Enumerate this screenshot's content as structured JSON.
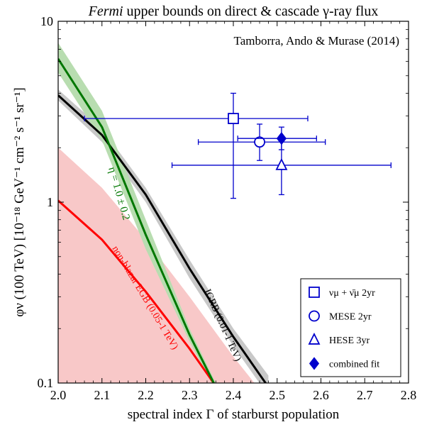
{
  "chart_data": {
    "type": "scatter",
    "title": "Fermi upper bounds on direct & cascade γ-ray flux",
    "title_italic_part": "Fermi",
    "title_rest": " upper bounds on direct & cascade γ-ray flux",
    "annotation": "Tamborra, Ando & Murase (2014)",
    "xlabel": "spectral index Γ of starburst population",
    "ylabel": "φν (100 TeV) [10⁻¹⁸ GeV⁻¹ cm⁻² s⁻¹ sr⁻¹]",
    "xlim": [
      2.0,
      2.8
    ],
    "ylim": [
      0.1,
      10
    ],
    "yscale": "log",
    "grid": false,
    "legend_position": "lower-right",
    "x_ticks": [
      "2.0",
      "2.1",
      "2.2",
      "2.3",
      "2.4",
      "2.5",
      "2.6",
      "2.7",
      "2.8"
    ],
    "y_ticks": [
      "0.1",
      "1",
      "10"
    ],
    "colors": {
      "data": "#0000cc",
      "egrb": "#ff0000",
      "egrb_band": "#f8c8c8",
      "igrb": "#000000",
      "igrb_band": "#c8c8c8",
      "eta": "#007700",
      "eta_band": "#b8ddb0"
    },
    "bands": [
      {
        "label": "IGRB (0.01-1 TeV)",
        "kind": "igrb",
        "x": [
          2.0,
          2.1,
          2.2,
          2.3,
          2.4,
          2.48
        ],
        "lower": [
          3.65,
          2.15,
          1.0,
          0.38,
          0.16,
          0.085
        ],
        "upper": [
          4.2,
          2.55,
          1.2,
          0.48,
          0.2,
          0.11
        ],
        "line": [
          3.9,
          2.35,
          1.1,
          0.43,
          0.18,
          0.095
        ]
      },
      {
        "label": "non-blazar EGB (0.05-1 TeV)",
        "kind": "egrb",
        "x": [
          2.0,
          2.1,
          2.2,
          2.3,
          2.4,
          2.46
        ],
        "lower": [
          0.0,
          0.0,
          0.0,
          0.0,
          0.0,
          0.0
        ],
        "upper": [
          2.0,
          1.2,
          0.62,
          0.3,
          0.14,
          0.092
        ],
        "line": [
          1.02,
          0.62,
          0.32,
          0.155,
          0.07,
          0.046
        ]
      },
      {
        "label": "η = 1.0 ± 0.2",
        "kind": "eta",
        "x": [
          2.0,
          2.1,
          2.2,
          2.3,
          2.36
        ],
        "lower": [
          5.2,
          2.2,
          0.55,
          0.17,
          0.09
        ],
        "upper": [
          7.6,
          3.2,
          0.8,
          0.2,
          0.1
        ],
        "line": [
          6.2,
          2.6,
          0.66,
          0.185,
          0.095
        ]
      }
    ],
    "band_labels": {
      "igrb": "IGRB (0.01-1 TeV)",
      "egrb": "non-blazar EGB (0.05-1 TeV)",
      "eta": "η = 1.0 ± 0.2"
    },
    "points": [
      {
        "name": "νμ + ν̄μ 2yr",
        "marker": "square",
        "filled": false,
        "x": 2.4,
        "y": 2.9,
        "xerr": [
          0.34,
          0.17
        ],
        "yerr": [
          1.85,
          1.1
        ]
      },
      {
        "name": "MESE 2yr",
        "marker": "circle",
        "filled": false,
        "x": 2.46,
        "y": 2.15,
        "xerr": [
          0.14,
          0.15
        ],
        "yerr": [
          0.45,
          0.55
        ]
      },
      {
        "name": "HESE 3yr",
        "marker": "triangle",
        "filled": false,
        "x": 2.51,
        "y": 1.6,
        "xerr": [
          0.25,
          0.25
        ],
        "yerr": [
          0.5,
          0.6
        ]
      },
      {
        "name": "combined fit",
        "marker": "diamond",
        "filled": true,
        "x": 2.51,
        "y": 2.25,
        "xerr": [
          0.1,
          0.08
        ],
        "yerr": [
          0.3,
          0.35
        ]
      }
    ],
    "legend": [
      {
        "marker": "square",
        "filled": false,
        "label": "νμ + ν̄μ 2yr"
      },
      {
        "marker": "circle",
        "filled": false,
        "label": "MESE 2yr"
      },
      {
        "marker": "triangle",
        "filled": false,
        "label": "HESE 3yr"
      },
      {
        "marker": "diamond",
        "filled": true,
        "label": "combined fit"
      }
    ]
  }
}
